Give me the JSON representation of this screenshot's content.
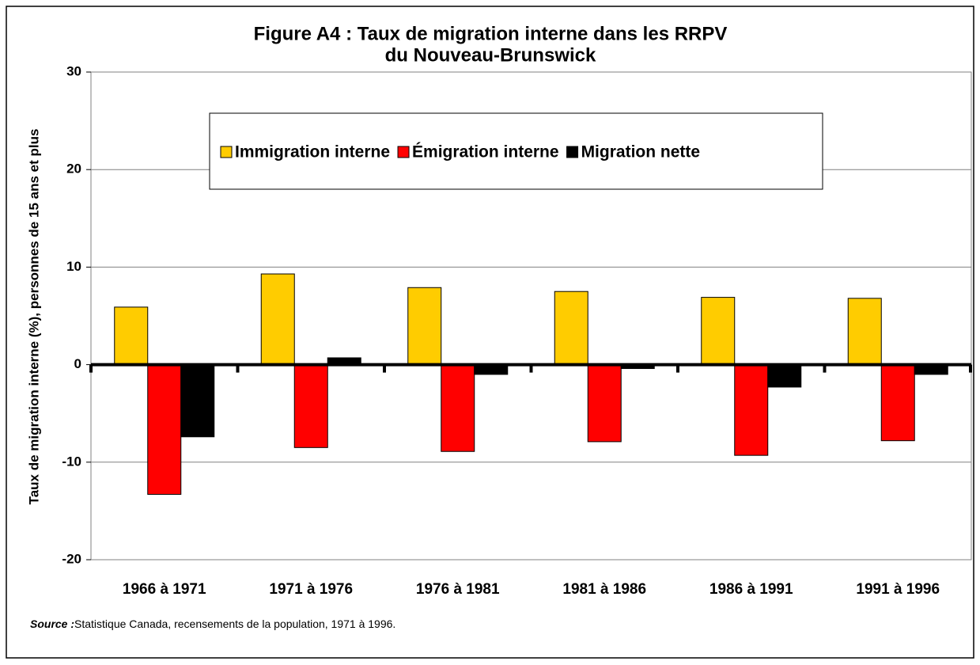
{
  "chart_data": {
    "type": "bar",
    "title": [
      "Figure A4 : Taux de migration interne dans les RRPV",
      "du Nouveau-Brunswick"
    ],
    "y_label": "Taux de migration interne (%), personnes de 15 ans et plus",
    "categories": [
      "1966 à 1971",
      "1971 à 1976",
      "1976 à 1981",
      "1981 à 1986",
      "1986 à 1991",
      "1991 à 1996"
    ],
    "series": [
      {
        "name": "Immigration interne",
        "color": "#ffcc00",
        "values": [
          5.9,
          9.3,
          7.9,
          7.5,
          6.9,
          6.8
        ]
      },
      {
        "name": "Émigration interne",
        "color": "#ff0000",
        "values": [
          -13.3,
          -8.5,
          -8.9,
          -7.9,
          -9.3,
          -7.8
        ]
      },
      {
        "name": "Migration nette",
        "color": "#000000",
        "values": [
          -7.4,
          0.7,
          -1.0,
          -0.4,
          -2.3,
          -1.0
        ]
      }
    ],
    "ylim": [
      -20,
      30
    ],
    "yticks": [
      -20,
      -10,
      0,
      10,
      20,
      30
    ],
    "grid": true,
    "legend": "top",
    "source_label": "Source :",
    "source_text": "Statistique Canada, recensements de la population, 1971 à 1996."
  }
}
